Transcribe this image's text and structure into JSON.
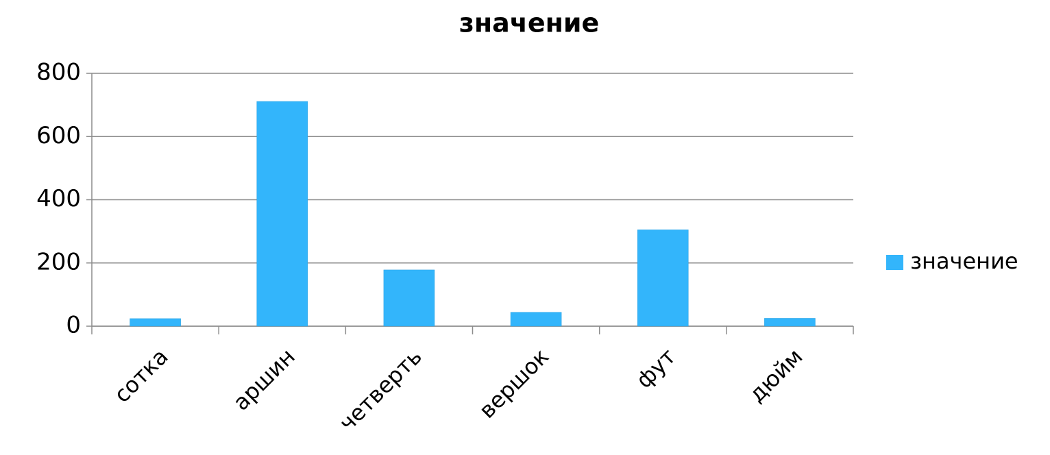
{
  "chart_data": {
    "type": "bar",
    "title": "значение",
    "categories": [
      "сотка",
      "аршин",
      "четверть",
      "вершок",
      "фут",
      "дюйм"
    ],
    "series": [
      {
        "name": "значение",
        "color": "#33b5fb",
        "values": [
          24,
          711,
          178,
          44,
          305,
          25
        ]
      }
    ],
    "ylim": [
      0,
      800
    ],
    "yticks": [
      0,
      200,
      400,
      600,
      800
    ],
    "grid": true,
    "legend": "right"
  }
}
